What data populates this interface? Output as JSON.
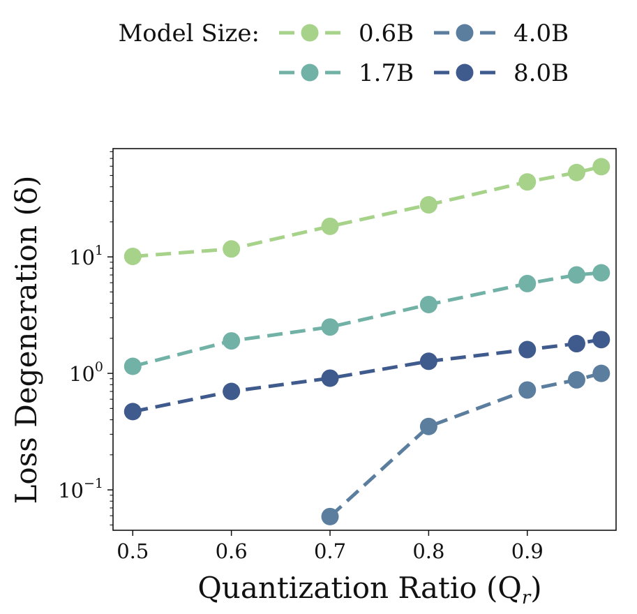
{
  "chart_data": {
    "type": "line",
    "title": "",
    "xlabel": "Quantization Ratio (Q",
    "xlabel_sub": "r",
    "xlabel_close": ")",
    "ylabel": "Loss Degeneration (δ)",
    "y_scale": "log",
    "xlim": [
      0.48,
      0.99
    ],
    "ylim": [
      0.045,
      85
    ],
    "x_ticks": [
      0.5,
      0.6,
      0.7,
      0.8,
      0.9
    ],
    "x_tick_labels": [
      "0.5",
      "0.6",
      "0.7",
      "0.8",
      "0.9"
    ],
    "y_ticks": [
      {
        "value": 0.1,
        "base": "10",
        "exp": "−1"
      },
      {
        "value": 1,
        "base": "10",
        "exp": "0"
      },
      {
        "value": 10,
        "base": "10",
        "exp": "1"
      }
    ],
    "legend": {
      "title": "Model Size:",
      "placement": "top-center",
      "entries": [
        "0.6B",
        "4.0B",
        "1.7B",
        "8.0B"
      ]
    },
    "series": [
      {
        "name": "0.6B",
        "color": "#a6d28a",
        "x": [
          0.5,
          0.6,
          0.7,
          0.8,
          0.9,
          0.95,
          0.975
        ],
        "y": [
          10.1,
          11.7,
          18.3,
          28.0,
          44.0,
          53.0,
          59.5
        ]
      },
      {
        "name": "1.7B",
        "color": "#72b2a6",
        "x": [
          0.5,
          0.6,
          0.7,
          0.8,
          0.9,
          0.95,
          0.975
        ],
        "y": [
          1.15,
          1.9,
          2.5,
          3.9,
          5.9,
          7.0,
          7.3
        ]
      },
      {
        "name": "4.0B",
        "color": "#5b7e9e",
        "x": [
          0.7,
          0.8,
          0.9,
          0.95,
          0.975
        ],
        "y": [
          0.059,
          0.35,
          0.72,
          0.88,
          1.0
        ]
      },
      {
        "name": "8.0B",
        "color": "#3f5a8c",
        "x": [
          0.5,
          0.6,
          0.7,
          0.8,
          0.9,
          0.95,
          0.975
        ],
        "y": [
          0.47,
          0.7,
          0.91,
          1.27,
          1.6,
          1.8,
          1.95
        ]
      }
    ]
  }
}
